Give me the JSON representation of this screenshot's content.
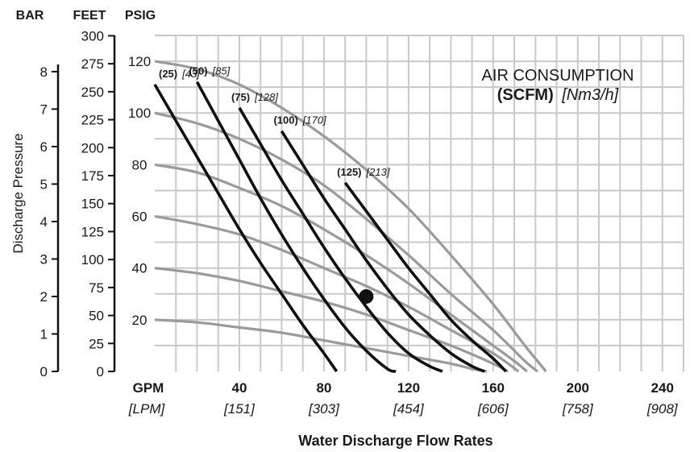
{
  "chart_data": {
    "type": "line",
    "title": "",
    "xlabel": "Water Discharge Flow Rates",
    "ylabel": "Discharge Pressure",
    "x_unit_labels": [
      "GPM",
      "[LPM]"
    ],
    "x_ticks_gpm": [
      "40",
      "80",
      "120",
      "160",
      "200",
      "240"
    ],
    "x_ticks_lpm": [
      "[151]",
      "[303]",
      "[454]",
      "[606]",
      "[758]",
      "[908]"
    ],
    "xlim_gpm": [
      0,
      250
    ],
    "y_axes": [
      {
        "header": "BAR",
        "ticks": [
          "0",
          "1",
          "2",
          "3",
          "4",
          "5",
          "6",
          "7",
          "8"
        ]
      },
      {
        "header": "FEET",
        "ticks": [
          "0",
          "25",
          "50",
          "75",
          "100",
          "125",
          "150",
          "175",
          "200",
          "225",
          "250",
          "275",
          "300"
        ]
      },
      {
        "header": "PSIG",
        "ticks": [
          "20",
          "40",
          "60",
          "80",
          "100",
          "120"
        ]
      }
    ],
    "ylim_psig": [
      0,
      130
    ],
    "grid": true,
    "legend_title": "AIR CONSUMPTION",
    "legend_subtitle_bold": "(SCFM)",
    "legend_subtitle_italic": "[Nm3/h]",
    "air_consumption_curves": [
      {
        "scfm": "(25)",
        "nm3h": "[43]",
        "points": [
          [
            0,
            111
          ],
          [
            10,
            97
          ],
          [
            20,
            83
          ],
          [
            30,
            69
          ],
          [
            40,
            55
          ],
          [
            50,
            42
          ],
          [
            60,
            30
          ],
          [
            70,
            18
          ],
          [
            80,
            7
          ],
          [
            86,
            0
          ]
        ]
      },
      {
        "scfm": "(50)",
        "nm3h": "[85]",
        "points": [
          [
            20,
            112
          ],
          [
            30,
            97
          ],
          [
            40,
            82
          ],
          [
            50,
            67
          ],
          [
            60,
            53
          ],
          [
            70,
            40
          ],
          [
            80,
            28
          ],
          [
            90,
            17
          ],
          [
            100,
            8
          ],
          [
            110,
            1
          ],
          [
            114,
            0
          ]
        ]
      },
      {
        "scfm": "(75)",
        "nm3h": "[128]",
        "points": [
          [
            40,
            102
          ],
          [
            50,
            88
          ],
          [
            60,
            74
          ],
          [
            70,
            61
          ],
          [
            80,
            48
          ],
          [
            90,
            36
          ],
          [
            100,
            25
          ],
          [
            110,
            15
          ],
          [
            120,
            7
          ],
          [
            130,
            2
          ],
          [
            136,
            0
          ]
        ]
      },
      {
        "scfm": "(100)",
        "nm3h": "[170]",
        "points": [
          [
            60,
            93
          ],
          [
            70,
            80
          ],
          [
            80,
            67
          ],
          [
            90,
            55
          ],
          [
            100,
            43
          ],
          [
            110,
            32
          ],
          [
            120,
            22
          ],
          [
            130,
            14
          ],
          [
            140,
            7
          ],
          [
            150,
            2
          ],
          [
            156,
            0
          ]
        ]
      },
      {
        "scfm": "(125)",
        "nm3h": "[213]",
        "points": [
          [
            90,
            73
          ],
          [
            100,
            62
          ],
          [
            110,
            51
          ],
          [
            120,
            40
          ],
          [
            130,
            30
          ],
          [
            140,
            20
          ],
          [
            150,
            12
          ],
          [
            160,
            5
          ],
          [
            166,
            0
          ]
        ]
      }
    ],
    "pressure_curves": [
      {
        "points": [
          [
            0,
            120
          ],
          [
            20,
            117
          ],
          [
            40,
            111
          ],
          [
            60,
            102
          ],
          [
            80,
            91
          ],
          [
            100,
            78
          ],
          [
            120,
            63
          ],
          [
            140,
            45
          ],
          [
            160,
            26
          ],
          [
            175,
            10
          ],
          [
            185,
            0
          ]
        ]
      },
      {
        "points": [
          [
            0,
            100
          ],
          [
            20,
            96
          ],
          [
            40,
            90
          ],
          [
            60,
            82
          ],
          [
            80,
            72
          ],
          [
            100,
            59
          ],
          [
            120,
            45
          ],
          [
            140,
            30
          ],
          [
            160,
            16
          ],
          [
            175,
            4
          ],
          [
            181,
            0
          ]
        ]
      },
      {
        "points": [
          [
            0,
            80
          ],
          [
            20,
            77
          ],
          [
            40,
            71
          ],
          [
            60,
            64
          ],
          [
            80,
            55
          ],
          [
            100,
            45
          ],
          [
            120,
            34
          ],
          [
            140,
            22
          ],
          [
            160,
            10
          ],
          [
            170,
            4
          ],
          [
            176,
            0
          ]
        ]
      },
      {
        "points": [
          [
            0,
            60
          ],
          [
            20,
            57
          ],
          [
            40,
            53
          ],
          [
            60,
            47
          ],
          [
            80,
            40
          ],
          [
            100,
            33
          ],
          [
            120,
            25
          ],
          [
            140,
            16
          ],
          [
            160,
            7
          ],
          [
            172,
            0
          ]
        ]
      },
      {
        "points": [
          [
            0,
            40
          ],
          [
            20,
            38
          ],
          [
            40,
            35
          ],
          [
            60,
            31
          ],
          [
            80,
            27
          ],
          [
            100,
            22
          ],
          [
            120,
            16
          ],
          [
            140,
            10
          ],
          [
            160,
            3
          ],
          [
            167,
            0
          ]
        ]
      },
      {
        "points": [
          [
            0,
            20
          ],
          [
            20,
            19
          ],
          [
            40,
            17
          ],
          [
            60,
            15
          ],
          [
            80,
            12
          ],
          [
            100,
            9
          ],
          [
            120,
            6
          ],
          [
            140,
            3
          ],
          [
            150,
            1
          ],
          [
            157,
            0
          ]
        ]
      }
    ],
    "operating_point": {
      "gpm": 100,
      "psig": 29
    }
  }
}
